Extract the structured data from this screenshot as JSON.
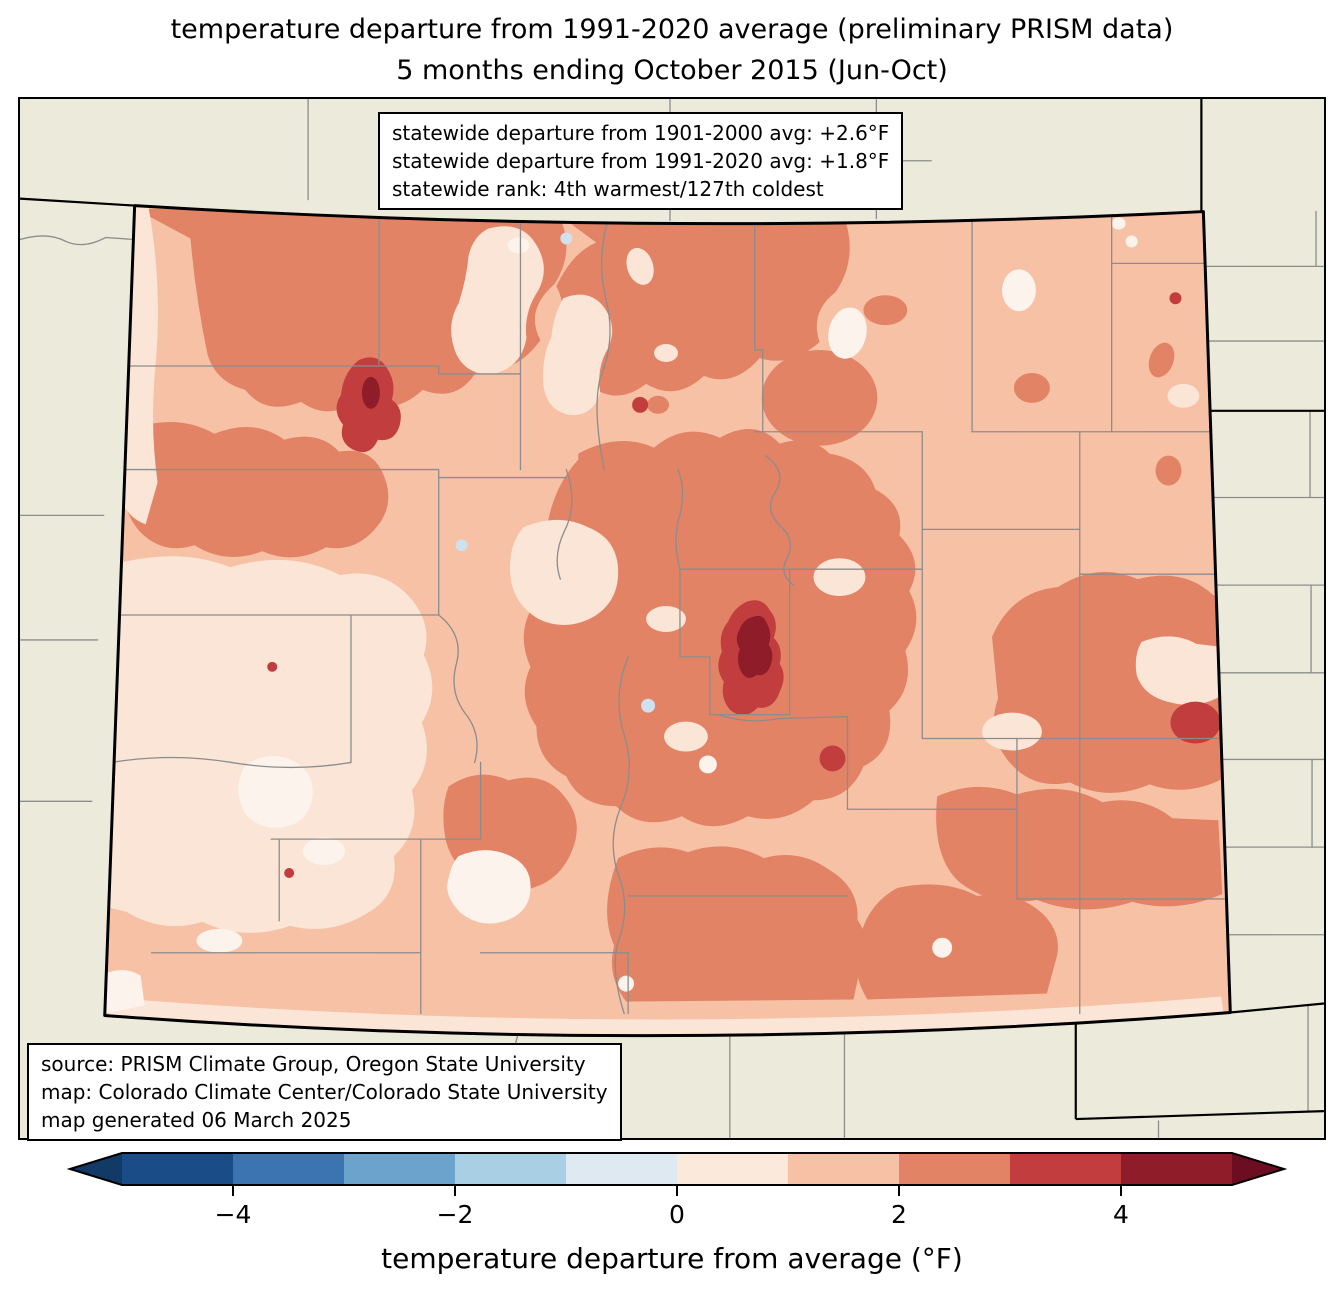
{
  "title": {
    "line1": "temperature departure from 1991-2020 average (preliminary PRISM data)",
    "line2": "5 months ending October 2015 (Jun-Oct)"
  },
  "stats_box": {
    "lines": [
      "statewide departure from 1901-2000 avg: +2.6°F",
      "statewide departure from 1991-2020 avg: +1.8°F",
      "statewide rank: 4th warmest/127th coldest"
    ]
  },
  "source_box": {
    "lines": [
      "source: PRISM Climate Group, Oregon State University",
      "map: Colorado Climate Center/Colorado State University",
      "map generated 06 March 2025"
    ]
  },
  "colorbar": {
    "label": "temperature departure from average (°F)",
    "tick_labels": [
      "−4",
      "−2",
      "0",
      "2",
      "4"
    ],
    "tick_values": [
      -4,
      -2,
      0,
      2,
      4
    ],
    "range": [
      -5,
      5
    ],
    "segment_colors": [
      "#1a4c87",
      "#3c74b1",
      "#6ba3cd",
      "#a9cfe5",
      "#dfe9f2",
      "#fbe9dc",
      "#f7c1a5",
      "#e28366",
      "#c23d3e",
      "#8e1c29"
    ],
    "under_color": "#123a66",
    "over_color": "#6d0d21",
    "outline_color": "#000000"
  },
  "map": {
    "region": "Colorado",
    "background_color": "#ecebdb",
    "county_line_color": "#8c8c8c",
    "state_border_color": "#000000",
    "bands": {
      "neg1_0": "#cfe0ee",
      "near_zero": "#fcf3ec",
      "pos0_1": "#fae5d7",
      "pos1_2": "#f7c1a5",
      "pos2_3": "#e28366",
      "pos3_4": "#c23d3e",
      "pos4_5": "#8e1c29"
    }
  },
  "chart_data": {
    "type": "choropleth_map",
    "title": "temperature departure from 1991-2020 average (preliminary PRISM data)",
    "subtitle": "5 months ending October 2015 (Jun-Oct)",
    "region": "Colorado",
    "statewide_departure_from_1901_2000_avg_F": 2.6,
    "statewide_departure_from_1991_2020_avg_F": 1.8,
    "statewide_rank": "4th warmest/127th coldest",
    "colorbar_label": "temperature departure from average (°F)",
    "colorbar_range_F": [
      -5,
      5
    ],
    "colorbar_step_F": 1,
    "colorbar_ticks": [
      -4,
      -2,
      0,
      2,
      4
    ],
    "dominant_bands_F": [
      "+1 to +2",
      "+2 to +3"
    ],
    "extreme_local_values_F": "up to +4 to +5 in small pockets"
  }
}
